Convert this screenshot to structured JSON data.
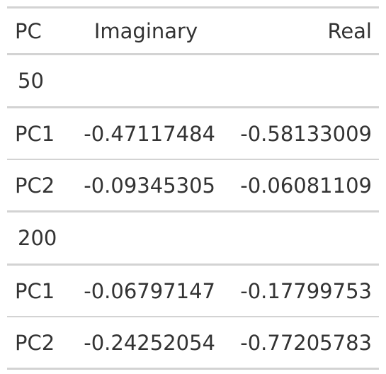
{
  "table": {
    "columns": [
      "PC",
      "Imaginary",
      "Real"
    ],
    "groups": [
      {
        "label": "50",
        "rows": [
          {
            "pc": "PC1",
            "imaginary": "-0.47117484",
            "real": "-0.58133009"
          },
          {
            "pc": "PC2",
            "imaginary": "-0.09345305",
            "real": "-0.06081109"
          }
        ]
      },
      {
        "label": "200",
        "rows": [
          {
            "pc": "PC1",
            "imaginary": "-0.06797147",
            "real": "-0.17799753"
          },
          {
            "pc": "PC2",
            "imaginary": "-0.24252054",
            "real": "-0.77205783"
          }
        ]
      }
    ]
  }
}
